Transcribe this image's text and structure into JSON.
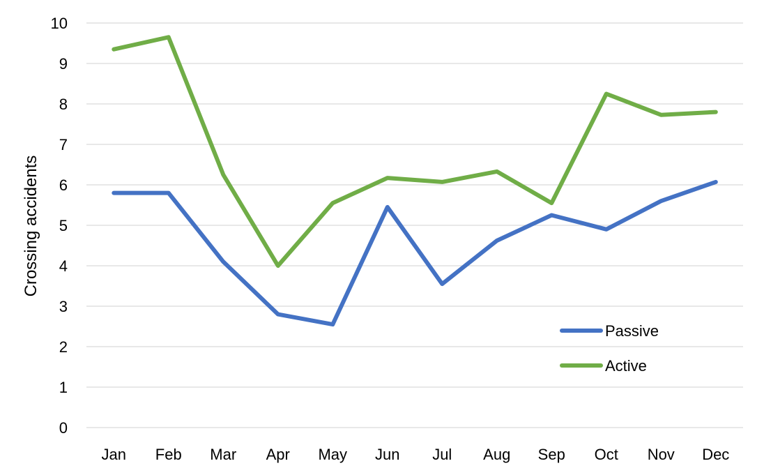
{
  "chart_data": {
    "type": "line",
    "title": "",
    "xlabel": "",
    "ylabel": "Crossing accidents",
    "categories": [
      "Jan",
      "Feb",
      "Mar",
      "Apr",
      "May",
      "Jun",
      "Jul",
      "Aug",
      "Sep",
      "Oct",
      "Nov",
      "Dec"
    ],
    "ylim": [
      0,
      10
    ],
    "yticks": [
      "0",
      "1",
      "2",
      "3",
      "4",
      "5",
      "6",
      "7",
      "8",
      "9",
      "10"
    ],
    "grid": true,
    "legend_position": "bottom-right",
    "series": [
      {
        "name": "Passive",
        "color": "#4472C4",
        "values": [
          5.8,
          5.8,
          4.1,
          2.8,
          2.55,
          5.45,
          3.55,
          4.62,
          5.25,
          4.9,
          5.6,
          6.07
        ]
      },
      {
        "name": "Active",
        "color": "#70AD47",
        "values": [
          9.35,
          9.65,
          6.25,
          4.0,
          5.55,
          6.17,
          6.07,
          6.33,
          5.55,
          8.25,
          7.73,
          7.8
        ]
      }
    ]
  }
}
